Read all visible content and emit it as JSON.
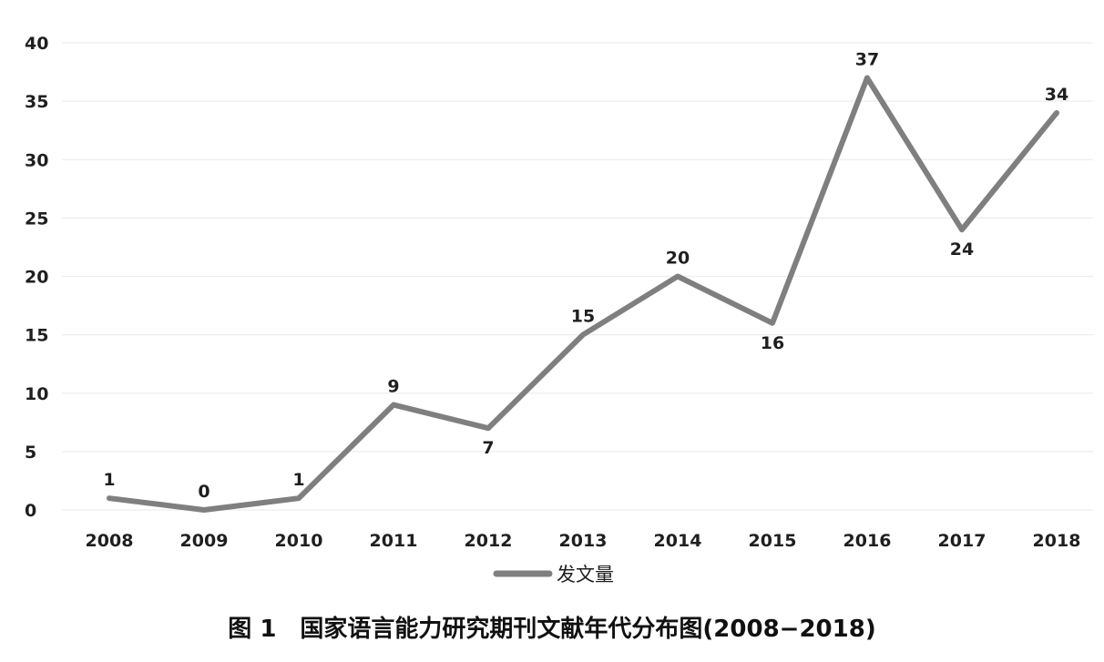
{
  "chart_data": {
    "type": "line",
    "categories": [
      "2008",
      "2009",
      "2010",
      "2011",
      "2012",
      "2013",
      "2014",
      "2015",
      "2016",
      "2017",
      "2018"
    ],
    "series": [
      {
        "name": "发文量",
        "values": [
          1,
          0,
          1,
          9,
          7,
          15,
          20,
          16,
          37,
          24,
          34
        ],
        "color": "#7f7f7f"
      }
    ],
    "yticks": [
      "0",
      "5",
      "10",
      "15",
      "20",
      "25",
      "30",
      "35",
      "40"
    ],
    "ylim": [
      0,
      40
    ],
    "grid": true,
    "legend": "bottom",
    "data_labels": true
  },
  "caption": "图 1　国家语言能力研究期刊文献年代分布图(2008−2018)"
}
